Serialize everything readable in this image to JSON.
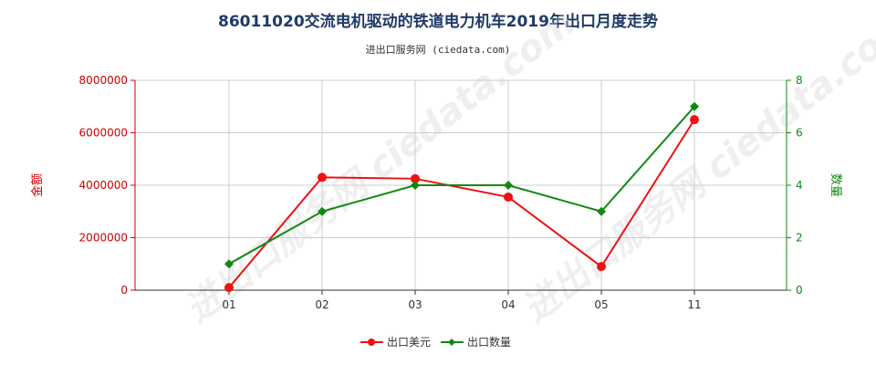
{
  "title": "86011020交流电机驱动的铁道电力机车2019年出口月度走势",
  "subtitle": "进出口服务网 (ciedata.com)",
  "watermark": "进出口服务网 ciedata.com",
  "colors": {
    "series_usd": "#ee1111",
    "series_qty": "#118811",
    "left_axis": "#cc0000",
    "right_axis": "#118811",
    "grid": "#cccccc"
  },
  "chart_data": {
    "type": "line",
    "categories": [
      "01",
      "02",
      "03",
      "04",
      "05",
      "11"
    ],
    "y_left": {
      "label": "金额",
      "ylim": [
        0,
        8000000
      ],
      "ticks": [
        "0",
        "2000000",
        "4000000",
        "6000000",
        "8000000"
      ]
    },
    "y_right": {
      "label": "数量",
      "ylim": [
        0,
        8
      ],
      "ticks": [
        "0",
        "2",
        "4",
        "6",
        "8"
      ]
    },
    "series": [
      {
        "name": "出口美元",
        "axis": "left",
        "values": [
          100000,
          4300000,
          4250000,
          3550000,
          900000,
          6500000
        ]
      },
      {
        "name": "出口数量",
        "axis": "right",
        "values": [
          1,
          3,
          4,
          4,
          3,
          7
        ]
      }
    ],
    "grid": true,
    "legend": "bottom-center"
  }
}
